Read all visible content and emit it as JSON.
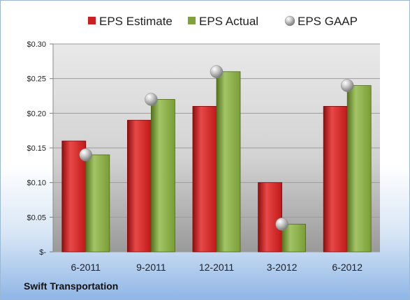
{
  "company": "Swift Transportation",
  "chart_data": {
    "type": "bar",
    "categories": [
      "6-2011",
      "9-2011",
      "12-2011",
      "3-2012",
      "6-2012"
    ],
    "series": [
      {
        "name": "EPS Estimate",
        "kind": "bar",
        "color": "#cc1f1f",
        "values": [
          0.16,
          0.19,
          0.21,
          0.1,
          0.21
        ]
      },
      {
        "name": "EPS Actual",
        "kind": "bar",
        "color": "#7fa33a",
        "values": [
          0.14,
          0.22,
          0.26,
          0.04,
          0.24
        ]
      },
      {
        "name": "EPS GAAP",
        "kind": "marker",
        "color": "#b8b8b8",
        "values": [
          0.14,
          0.22,
          0.26,
          0.04,
          0.24
        ]
      }
    ],
    "ylim": [
      0,
      0.3
    ],
    "yticks": [
      0,
      0.05,
      0.1,
      0.15,
      0.2,
      0.25,
      0.3
    ],
    "ytick_labels": [
      "$-",
      "$0.05",
      "$0.10",
      "$0.15",
      "$0.20",
      "$0.25",
      "$0.30"
    ],
    "grid": true,
    "legend_position": "top"
  }
}
